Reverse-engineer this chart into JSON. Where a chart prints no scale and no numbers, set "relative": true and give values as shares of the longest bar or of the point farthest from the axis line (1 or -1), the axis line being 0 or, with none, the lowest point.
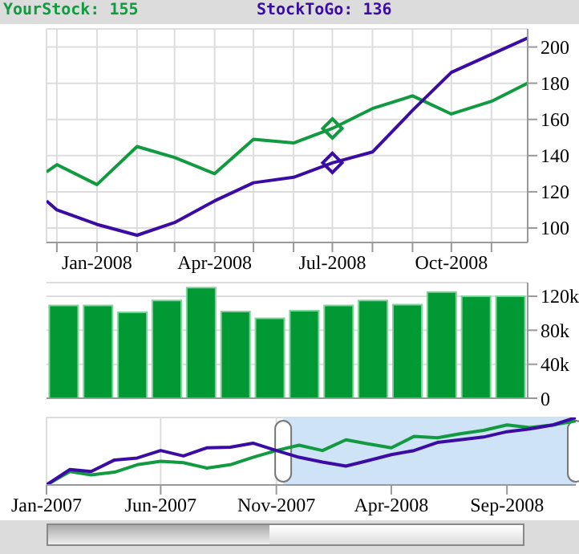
{
  "chart_data": [
    {
      "type": "line",
      "x": [
        "2007-11-23",
        "2007-12",
        "2008-01",
        "2008-02",
        "2008-03",
        "2008-04",
        "2008-05",
        "2008-06",
        "2008-07",
        "2008-08",
        "2008-09",
        "2008-10",
        "2008-11",
        "2008-11-29"
      ],
      "series": [
        {
          "color": "#119a3f",
          "values": [
            131,
            135,
            124,
            145,
            139,
            130,
            149,
            147,
            155,
            166,
            173,
            163,
            170,
            180
          ]
        },
        {
          "color": "#3b0ca3",
          "values": [
            115,
            110,
            102,
            96,
            103,
            115,
            125,
            128,
            136,
            142,
            165,
            186,
            196,
            205
          ]
        },
        {
          "type": "scatter",
          "marker": "diamond",
          "color": "#119a3f",
          "x": [
            "2008-07"
          ],
          "values": [
            155
          ]
        },
        {
          "type": "scatter",
          "marker": "diamond",
          "color": "#3b0ca3",
          "x": [
            "2008-07"
          ],
          "values": [
            136
          ]
        }
      ],
      "annotations": [
        "YourStock: 155",
        "StockToGo: 136"
      ],
      "xlim": [
        "2007-11-23",
        "2008-11-29"
      ],
      "xticks": [
        {
          "value": "2007-12",
          "label": null
        },
        {
          "value": "2008-01",
          "label": "Jan-2008"
        },
        {
          "value": "2008-02",
          "label": null
        },
        {
          "value": "2008-03",
          "label": null
        },
        {
          "value": "2008-04",
          "label": "Apr-2008"
        },
        {
          "value": "2008-05",
          "label": null
        },
        {
          "value": "2008-06",
          "label": null
        },
        {
          "value": "2008-07",
          "label": "Jul-2008"
        },
        {
          "value": "2008-08",
          "label": null
        },
        {
          "value": "2008-09",
          "label": null
        },
        {
          "value": "2008-10",
          "label": "Oct-2008"
        },
        {
          "value": "2008-11",
          "label": null
        }
      ],
      "ylim": [
        92,
        210
      ],
      "yticks": [
        100,
        120,
        140,
        160,
        180,
        200
      ],
      "grid": true,
      "line_style": "solid"
    },
    {
      "type": "bar",
      "categories": [
        null,
        null,
        null,
        null,
        null,
        null,
        null,
        null,
        null,
        null,
        null,
        null,
        null,
        null
      ],
      "values": [
        109000,
        109000,
        101000,
        115000,
        130000,
        102000,
        94000,
        103000,
        109000,
        115000,
        110000,
        125000,
        120000,
        120000
      ],
      "color": "#009933",
      "ylim": [
        0,
        136000
      ],
      "yticks": [
        0,
        {
          "value": 40000,
          "label": "40k"
        },
        {
          "value": 80000,
          "label": "80k"
        },
        {
          "value": 120000,
          "label": "120k"
        }
      ],
      "grid": "y",
      "tick_labels": "y"
    },
    {
      "type": "line",
      "relative": true,
      "x": [
        "2007-01",
        "2007-02",
        "2007-03",
        "2007-04",
        "2007-05",
        "2007-06",
        "2007-07",
        "2007-08",
        "2007-09",
        "2007-10",
        "2007-11",
        "2007-12",
        "2008-01",
        "2008-02",
        "2008-03",
        "2008-04",
        "2008-05",
        "2008-06",
        "2008-07",
        "2008-08",
        "2008-09",
        "2008-10",
        "2008-11",
        "2008-12"
      ],
      "series": [
        {
          "color": "#119a3f",
          "values": [
            0,
            0.2,
            0.15,
            0.19,
            0.3,
            0.35,
            0.33,
            0.25,
            0.3,
            0.41,
            0.51,
            0.59,
            0.51,
            0.67,
            0.61,
            0.55,
            0.72,
            0.7,
            0.76,
            0.81,
            0.89,
            0.85,
            0.89,
            0.95
          ]
        },
        {
          "color": "#3b0ca3",
          "values": [
            0,
            0.23,
            0.2,
            0.37,
            0.4,
            0.51,
            0.43,
            0.55,
            0.56,
            0.62,
            0.51,
            0.41,
            0.34,
            0.28,
            0.36,
            0.45,
            0.51,
            0.63,
            0.67,
            0.71,
            0.79,
            0.83,
            0.89,
            1
          ]
        }
      ],
      "xlim": [
        "2007-01",
        "2008-12"
      ],
      "xticks": [
        {
          "value": "2007-01",
          "label": "Jan-2007"
        },
        {
          "value": "2007-06",
          "label": "Jun-2007"
        },
        {
          "value": "2007-11",
          "label": "Nov-2007"
        },
        {
          "value": "2008-04",
          "label": "Apr-2008"
        },
        {
          "value": "2008-09",
          "label": "Sep-2008"
        }
      ],
      "bands": [
        {
          "axis": "x",
          "from": "2007-11-10",
          "to": "2008-12",
          "color": "#cfe3f7"
        }
      ],
      "grid": true,
      "tick_labels": "x",
      "line_style": "solid"
    }
  ]
}
